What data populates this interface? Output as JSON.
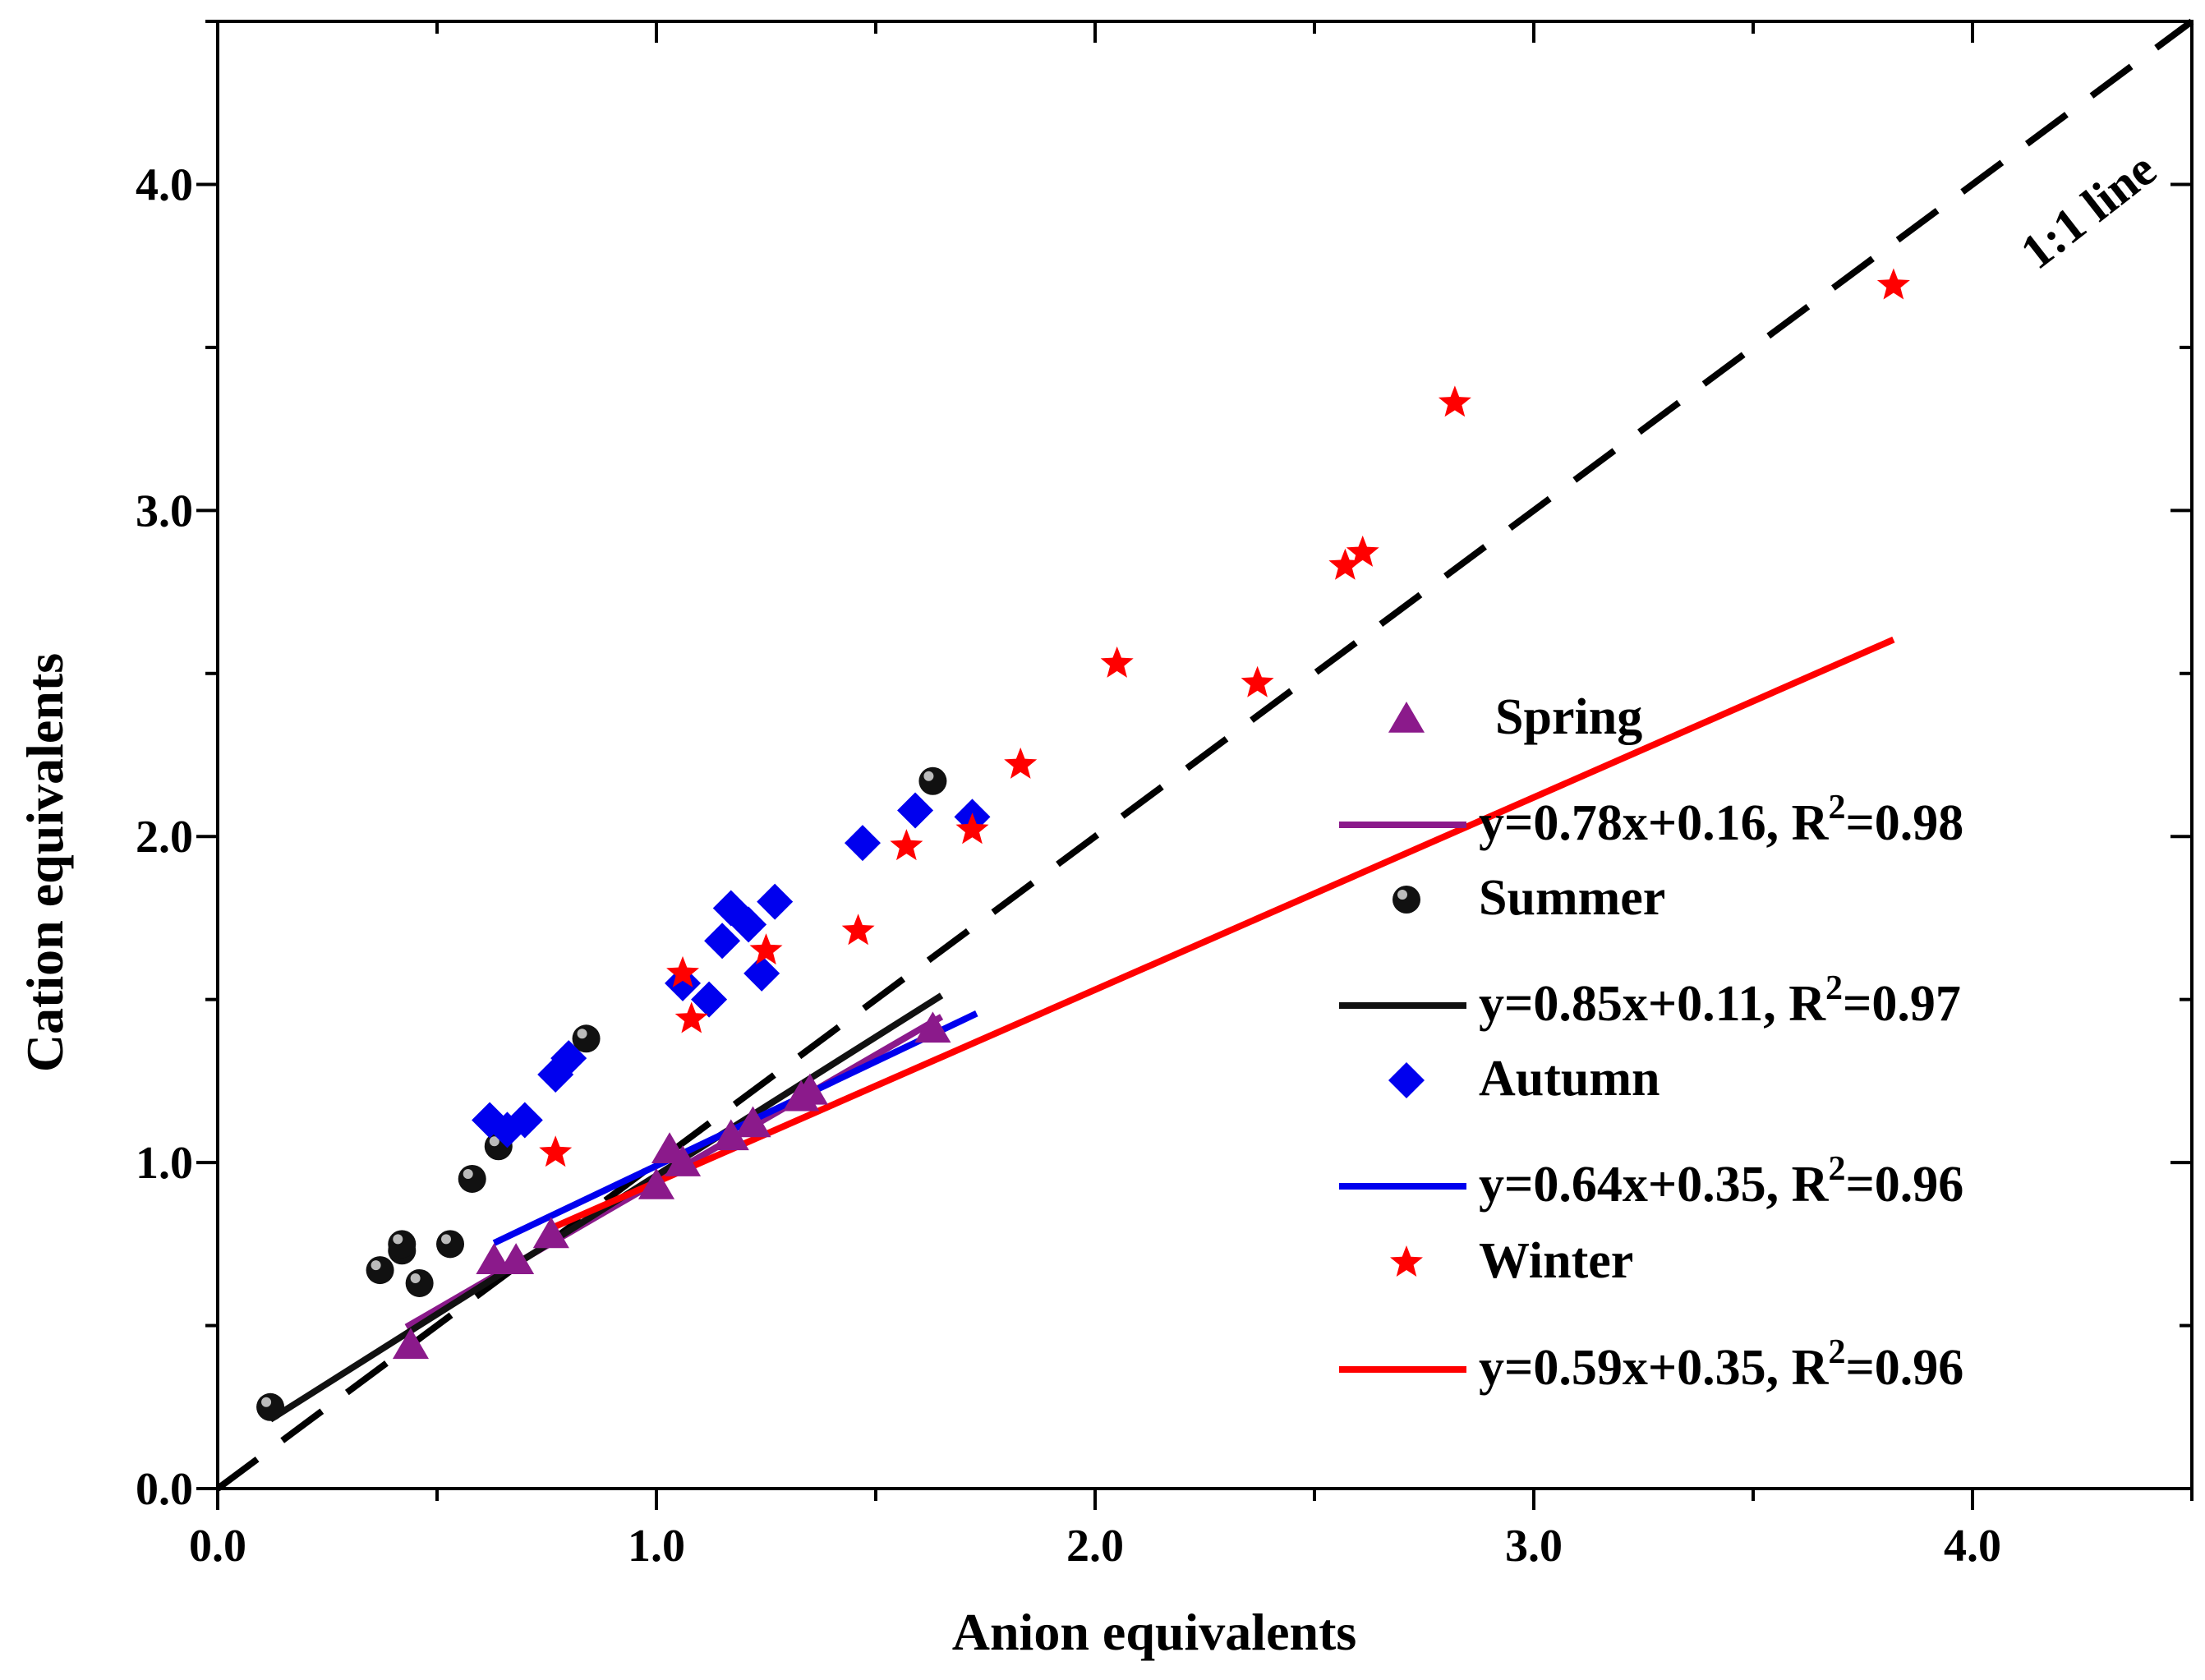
{
  "chart_data": {
    "type": "scatter",
    "xlabel": "Anion equivalents",
    "ylabel": "Cation equivalents",
    "xlim": [
      0,
      4.5
    ],
    "ylim": [
      0,
      4.5
    ],
    "x_ticks": [
      "0.0",
      "1.0",
      "2.0",
      "3.0",
      "4.0"
    ],
    "y_ticks": [
      "0.0",
      "1.0",
      "2.0",
      "3.0",
      "4.0"
    ],
    "reference_line": {
      "label": "1:1 line",
      "slope": 1,
      "intercept": 0
    },
    "series": [
      {
        "name": "Spring",
        "marker": "triangle",
        "color": "#8B1A8B",
        "fit_label": "y=0.78x+0.16, R",
        "fit_r2": "=0.98",
        "fit_slope": 0.78,
        "fit_intercept": 0.16,
        "fit_range": [
          0.43,
          1.65
        ],
        "points": [
          [
            0.44,
            0.44
          ],
          [
            0.63,
            0.7
          ],
          [
            0.68,
            0.7
          ],
          [
            0.76,
            0.78
          ],
          [
            1.0,
            0.93
          ],
          [
            1.03,
            1.04
          ],
          [
            1.06,
            1.0
          ],
          [
            1.17,
            1.08
          ],
          [
            1.22,
            1.12
          ],
          [
            1.33,
            1.2
          ],
          [
            1.35,
            1.22
          ],
          [
            1.63,
            1.41
          ]
        ]
      },
      {
        "name": "Summer",
        "marker": "sphere",
        "color": "#111111",
        "fit_label": "y=0.85x+0.11, R",
        "fit_r2": "=0.97",
        "fit_slope": 0.85,
        "fit_intercept": 0.11,
        "fit_range": [
          0.12,
          1.65
        ],
        "points": [
          [
            0.12,
            0.25
          ],
          [
            0.37,
            0.67
          ],
          [
            0.42,
            0.73
          ],
          [
            0.42,
            0.75
          ],
          [
            0.46,
            0.63
          ],
          [
            0.53,
            0.75
          ],
          [
            0.58,
            0.95
          ],
          [
            0.64,
            1.05
          ],
          [
            0.84,
            1.38
          ],
          [
            1.63,
            2.17
          ]
        ]
      },
      {
        "name": "Autumn",
        "marker": "diamond",
        "color": "#0000EE",
        "fit_label": "y=0.64x+0.35, R",
        "fit_r2": "=0.96",
        "fit_slope": 0.64,
        "fit_intercept": 0.35,
        "fit_range": [
          0.63,
          1.73
        ],
        "points": [
          [
            0.62,
            1.13
          ],
          [
            0.66,
            1.1
          ],
          [
            0.7,
            1.13
          ],
          [
            0.77,
            1.27
          ],
          [
            0.8,
            1.32
          ],
          [
            1.06,
            1.55
          ],
          [
            1.12,
            1.5
          ],
          [
            1.15,
            1.68
          ],
          [
            1.17,
            1.78
          ],
          [
            1.21,
            1.73
          ],
          [
            1.24,
            1.58
          ],
          [
            1.27,
            1.8
          ],
          [
            1.47,
            1.98
          ],
          [
            1.59,
            2.08
          ],
          [
            1.72,
            2.06
          ]
        ]
      },
      {
        "name": "Winter",
        "marker": "star",
        "color": "#FF0000",
        "fit_label": "y=0.59x+0.35, R",
        "fit_r2": "=0.96",
        "fit_slope": 0.59,
        "fit_intercept": 0.35,
        "fit_range": [
          0.77,
          3.82
        ],
        "points": [
          [
            0.77,
            1.03
          ],
          [
            1.06,
            1.58
          ],
          [
            1.08,
            1.44
          ],
          [
            1.25,
            1.65
          ],
          [
            1.46,
            1.71
          ],
          [
            1.57,
            1.97
          ],
          [
            1.72,
            2.02
          ],
          [
            1.83,
            2.22
          ],
          [
            2.05,
            2.53
          ],
          [
            2.37,
            2.47
          ],
          [
            2.57,
            2.83
          ],
          [
            2.61,
            2.87
          ],
          [
            2.82,
            3.33
          ],
          [
            3.82,
            3.69
          ]
        ]
      }
    ]
  }
}
